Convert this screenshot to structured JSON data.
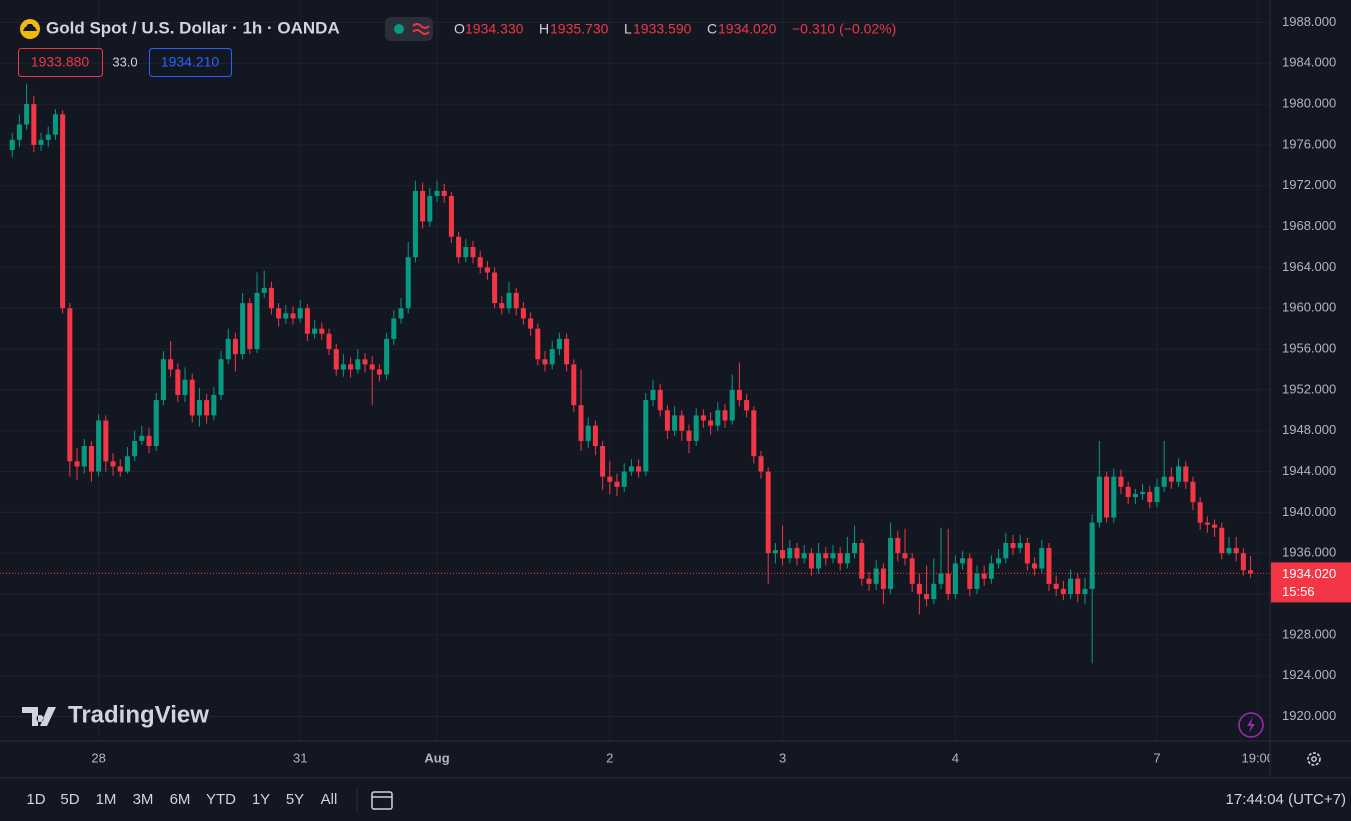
{
  "chart_data": {
    "type": "candlestick",
    "title": "Gold Spot / U.S. Dollar · 1h · OANDA",
    "ohlc": [
      {
        "key": "O",
        "value": "1934.330"
      },
      {
        "key": "H",
        "value": "1935.730"
      },
      {
        "key": "L",
        "value": "1933.590"
      },
      {
        "key": "C",
        "value": "1934.020"
      }
    ],
    "change": "−0.310 (−0.02%)",
    "bid": "1933.880",
    "spread": "33.0",
    "ask": "1934.210",
    "countdown": "15:56",
    "up_color": "#089981",
    "down_color": "#f23645",
    "grid": true,
    "xlim": [
      -1.7,
      174.7
    ],
    "xticks": [
      {
        "value": 12,
        "label": "28"
      },
      {
        "value": 40,
        "label": "31"
      },
      {
        "value": 59,
        "label": "Aug"
      },
      {
        "value": 83,
        "label": "2"
      },
      {
        "value": 107,
        "label": "3"
      },
      {
        "value": 131,
        "label": "4"
      },
      {
        "value": 159,
        "label": "7"
      },
      {
        "value": 173,
        "label": "19:00"
      }
    ],
    "ylim": [
      1917.6,
      1990.2
    ],
    "yticks": [
      {
        "value": 1920,
        "label": "1920.000"
      },
      {
        "value": 1924,
        "label": "1924.000"
      },
      {
        "value": 1928,
        "label": "1928.000"
      },
      {
        "value": 1932,
        "label": "1932.000"
      },
      {
        "value": 1936,
        "label": "1936.000"
      },
      {
        "value": 1940,
        "label": "1940.000"
      },
      {
        "value": 1944,
        "label": "1944.000"
      },
      {
        "value": 1948,
        "label": "1948.000"
      },
      {
        "value": 1952,
        "label": "1952.000"
      },
      {
        "value": 1956,
        "label": "1956.000"
      },
      {
        "value": 1960,
        "label": "1960.000"
      },
      {
        "value": 1964,
        "label": "1964.000"
      },
      {
        "value": 1968,
        "label": "1968.000"
      },
      {
        "value": 1972,
        "label": "1972.000"
      },
      {
        "value": 1976,
        "label": "1976.000"
      },
      {
        "value": 1980,
        "label": "1980.000"
      },
      {
        "value": 1984,
        "label": "1984.000"
      },
      {
        "value": 1988,
        "label": "1988.000"
      }
    ],
    "candles": [
      [
        1975.5,
        1977.2,
        1974.8,
        1976.5
      ],
      [
        1976.5,
        1979,
        1975.8,
        1978
      ],
      [
        1978,
        1982,
        1977.5,
        1980
      ],
      [
        1980,
        1980.8,
        1975.3,
        1976
      ],
      [
        1976,
        1977.2,
        1975.4,
        1976.5
      ],
      [
        1976.5,
        1977.8,
        1975.8,
        1977
      ],
      [
        1977,
        1979.5,
        1976.5,
        1979
      ],
      [
        1979,
        1979.4,
        1959.5,
        1960
      ],
      [
        1960,
        1960.5,
        1943.5,
        1945
      ],
      [
        1945,
        1946.3,
        1943.2,
        1944.5
      ],
      [
        1944.5,
        1947.2,
        1943.8,
        1946.5
      ],
      [
        1946.5,
        1947,
        1943,
        1944
      ],
      [
        1944,
        1949.6,
        1943.5,
        1949
      ],
      [
        1949,
        1949.5,
        1944,
        1945
      ],
      [
        1945,
        1945.8,
        1943.6,
        1944.5
      ],
      [
        1944.5,
        1945.2,
        1943.5,
        1944
      ],
      [
        1944,
        1946.4,
        1943.8,
        1945.5
      ],
      [
        1945.5,
        1948,
        1945,
        1947
      ],
      [
        1947,
        1948.5,
        1946.6,
        1947.5
      ],
      [
        1947.5,
        1948.3,
        1945.8,
        1946.5
      ],
      [
        1946.5,
        1951.7,
        1946,
        1951
      ],
      [
        1951,
        1955.8,
        1950.5,
        1955
      ],
      [
        1955,
        1956.8,
        1953.3,
        1954
      ],
      [
        1954,
        1954.6,
        1950.8,
        1951.5
      ],
      [
        1951.5,
        1954.2,
        1950.8,
        1953
      ],
      [
        1953,
        1953.6,
        1948.8,
        1949.5
      ],
      [
        1949.5,
        1952.2,
        1948.4,
        1951
      ],
      [
        1951,
        1951.6,
        1948.7,
        1949.5
      ],
      [
        1949.5,
        1952.3,
        1949,
        1951.5
      ],
      [
        1951.5,
        1955.8,
        1951,
        1955
      ],
      [
        1955,
        1958,
        1954.5,
        1957
      ],
      [
        1957,
        1957.6,
        1953.8,
        1955.5
      ],
      [
        1955.5,
        1961.5,
        1955,
        1960.5
      ],
      [
        1960.5,
        1961,
        1955.5,
        1956
      ],
      [
        1956,
        1963.5,
        1955.6,
        1961.5
      ],
      [
        1961.5,
        1963.7,
        1961,
        1962
      ],
      [
        1962,
        1962.6,
        1959.4,
        1960
      ],
      [
        1960,
        1960.5,
        1958.2,
        1959
      ],
      [
        1959,
        1960.3,
        1958.5,
        1959.5
      ],
      [
        1959.5,
        1960.2,
        1958.4,
        1959
      ],
      [
        1959,
        1960.8,
        1958.6,
        1960
      ],
      [
        1960,
        1960.4,
        1956.8,
        1957.5
      ],
      [
        1957.5,
        1958.8,
        1957,
        1958
      ],
      [
        1958,
        1958.6,
        1956.9,
        1957.5
      ],
      [
        1957.5,
        1958,
        1955.4,
        1956
      ],
      [
        1956,
        1956.5,
        1953.4,
        1954
      ],
      [
        1954,
        1955.5,
        1953.3,
        1954.5
      ],
      [
        1954.5,
        1955.2,
        1953.2,
        1954
      ],
      [
        1954,
        1956,
        1953.6,
        1955
      ],
      [
        1955,
        1955.6,
        1953.7,
        1954.5
      ],
      [
        1954.5,
        1955.3,
        1950.5,
        1954
      ],
      [
        1954,
        1954.5,
        1952.8,
        1953.5
      ],
      [
        1953.5,
        1957.6,
        1953,
        1957
      ],
      [
        1957,
        1959.8,
        1956.4,
        1959
      ],
      [
        1959,
        1961,
        1958.5,
        1960
      ],
      [
        1960,
        1966.5,
        1959.5,
        1965
      ],
      [
        1965,
        1972.5,
        1964.5,
        1971.5
      ],
      [
        1971.5,
        1972.3,
        1967.8,
        1968.5
      ],
      [
        1968.5,
        1971.8,
        1968,
        1971
      ],
      [
        1971,
        1972.5,
        1970.4,
        1971.5
      ],
      [
        1971.5,
        1972.2,
        1970.3,
        1971
      ],
      [
        1971,
        1971.4,
        1966.4,
        1967
      ],
      [
        1967,
        1967.5,
        1964.4,
        1965
      ],
      [
        1965,
        1966.8,
        1964.5,
        1966
      ],
      [
        1966,
        1966.6,
        1964.4,
        1965
      ],
      [
        1965,
        1965.6,
        1963.4,
        1964
      ],
      [
        1964,
        1964.6,
        1962.8,
        1963.5
      ],
      [
        1963.5,
        1964,
        1960,
        1960.5
      ],
      [
        1960.5,
        1961.2,
        1959.4,
        1960
      ],
      [
        1960,
        1962.6,
        1959.5,
        1961.5
      ],
      [
        1961.5,
        1962,
        1959.3,
        1960
      ],
      [
        1960,
        1960.6,
        1958.4,
        1959
      ],
      [
        1959,
        1959.6,
        1957.3,
        1958
      ],
      [
        1958,
        1958.5,
        1954.4,
        1955
      ],
      [
        1955,
        1955.8,
        1953.8,
        1954.5
      ],
      [
        1954.5,
        1956.8,
        1954,
        1956
      ],
      [
        1956,
        1957.6,
        1955.4,
        1957
      ],
      [
        1957,
        1957.5,
        1953.8,
        1954.5
      ],
      [
        1954.5,
        1955,
        1949.8,
        1950.5
      ],
      [
        1950.5,
        1954,
        1946,
        1947
      ],
      [
        1947,
        1949.3,
        1946.3,
        1948.5
      ],
      [
        1948.5,
        1949,
        1945.6,
        1946.5
      ],
      [
        1946.5,
        1947,
        1942.2,
        1943.5
      ],
      [
        1943.5,
        1945,
        1941.8,
        1943
      ],
      [
        1943,
        1943.8,
        1941.6,
        1942.5
      ],
      [
        1942.5,
        1944.8,
        1942,
        1944
      ],
      [
        1944,
        1945.2,
        1943.6,
        1944.5
      ],
      [
        1944.5,
        1945.2,
        1943.4,
        1944
      ],
      [
        1944,
        1951.7,
        1943.6,
        1951
      ],
      [
        1951,
        1953,
        1950.4,
        1952
      ],
      [
        1952,
        1952.6,
        1949.4,
        1950
      ],
      [
        1950,
        1950.5,
        1947.2,
        1948
      ],
      [
        1948,
        1950.4,
        1947.5,
        1949.5
      ],
      [
        1949.5,
        1950,
        1947,
        1948
      ],
      [
        1948,
        1948.6,
        1945.8,
        1947
      ],
      [
        1947,
        1950.2,
        1946.5,
        1949.5
      ],
      [
        1949.5,
        1950.1,
        1948.3,
        1949
      ],
      [
        1949,
        1949.8,
        1947.6,
        1948.5
      ],
      [
        1948.5,
        1950.8,
        1948,
        1950
      ],
      [
        1950,
        1950.6,
        1948.3,
        1949
      ],
      [
        1949,
        1953.5,
        1948.6,
        1952
      ],
      [
        1952,
        1954.7,
        1950.4,
        1951
      ],
      [
        1951,
        1951.6,
        1949.3,
        1950
      ],
      [
        1950,
        1950.4,
        1944.8,
        1945.5
      ],
      [
        1945.5,
        1946,
        1943.3,
        1944
      ],
      [
        1944,
        1944.4,
        1933,
        1936
      ],
      [
        1936,
        1937,
        1935,
        1936.3
      ],
      [
        1936.3,
        1938.7,
        1934.8,
        1935.5
      ],
      [
        1935.5,
        1937.3,
        1935,
        1936.5
      ],
      [
        1936.5,
        1937,
        1934.8,
        1935.5
      ],
      [
        1935.5,
        1936.8,
        1935,
        1936
      ],
      [
        1936,
        1936.5,
        1933.8,
        1934.5
      ],
      [
        1934.5,
        1937,
        1934,
        1936
      ],
      [
        1936,
        1936.6,
        1934.8,
        1935.5
      ],
      [
        1935.5,
        1936.8,
        1935,
        1936
      ],
      [
        1936,
        1936.6,
        1934.3,
        1935
      ],
      [
        1935,
        1937.6,
        1934.5,
        1936
      ],
      [
        1936,
        1938.7,
        1935.5,
        1937
      ],
      [
        1937,
        1937.4,
        1932.8,
        1933.5
      ],
      [
        1933.5,
        1934.2,
        1932.3,
        1933
      ],
      [
        1933,
        1935.3,
        1932.4,
        1934.5
      ],
      [
        1934.5,
        1935,
        1931,
        1932.5
      ],
      [
        1932.5,
        1939,
        1932,
        1937.5
      ],
      [
        1937.5,
        1938.2,
        1935.2,
        1936
      ],
      [
        1936,
        1938.4,
        1934.8,
        1935.5
      ],
      [
        1935.5,
        1936,
        1932.2,
        1933
      ],
      [
        1933,
        1934,
        1930,
        1932
      ],
      [
        1932,
        1934.8,
        1930.8,
        1931.5
      ],
      [
        1931.5,
        1935.5,
        1931,
        1933
      ],
      [
        1933,
        1938.5,
        1932.5,
        1934
      ],
      [
        1934,
        1938.4,
        1931.4,
        1932
      ],
      [
        1932,
        1935.8,
        1931.5,
        1935
      ],
      [
        1935,
        1936.2,
        1934.4,
        1935.5
      ],
      [
        1935.5,
        1936,
        1931.8,
        1932.5
      ],
      [
        1932.5,
        1934.8,
        1932,
        1934
      ],
      [
        1934,
        1934.8,
        1932.8,
        1933.5
      ],
      [
        1933.5,
        1935.8,
        1933,
        1935
      ],
      [
        1935,
        1936.4,
        1934.5,
        1935.5
      ],
      [
        1935.5,
        1938,
        1935,
        1937
      ],
      [
        1937,
        1937.8,
        1935.8,
        1936.5
      ],
      [
        1936.5,
        1937.8,
        1936,
        1937
      ],
      [
        1937,
        1937.5,
        1934.3,
        1935
      ],
      [
        1935,
        1935.6,
        1933.8,
        1934.5
      ],
      [
        1934.5,
        1937.3,
        1934,
        1936.5
      ],
      [
        1936.5,
        1937,
        1932.3,
        1933
      ],
      [
        1933,
        1933.8,
        1931.8,
        1932.5
      ],
      [
        1932.5,
        1933.3,
        1931.4,
        1932
      ],
      [
        1932,
        1934.4,
        1931.5,
        1933.5
      ],
      [
        1933.5,
        1934,
        1931.2,
        1932
      ],
      [
        1932,
        1933.6,
        1931,
        1932.5
      ],
      [
        1932.5,
        1939.8,
        1925.2,
        1939
      ],
      [
        1939,
        1947,
        1938.5,
        1943.5
      ],
      [
        1943.5,
        1944,
        1939,
        1939.5
      ],
      [
        1939.5,
        1944.3,
        1939,
        1943.5
      ],
      [
        1943.5,
        1944.2,
        1941.8,
        1942.5
      ],
      [
        1942.5,
        1943,
        1940.8,
        1941.5
      ],
      [
        1941.5,
        1942.3,
        1940.8,
        1941.8
      ],
      [
        1941.8,
        1942.8,
        1941.2,
        1942
      ],
      [
        1942,
        1942.6,
        1940.4,
        1941
      ],
      [
        1941,
        1943.3,
        1940.5,
        1942.5
      ],
      [
        1942.5,
        1947,
        1942,
        1943.5
      ],
      [
        1943.5,
        1944.4,
        1942.3,
        1943
      ],
      [
        1943,
        1945.3,
        1942.5,
        1944.5
      ],
      [
        1944.5,
        1945,
        1942.3,
        1943
      ],
      [
        1943,
        1943.5,
        1940.2,
        1941
      ],
      [
        1941,
        1941.5,
        1938.3,
        1939
      ],
      [
        1939,
        1939.6,
        1938,
        1938.8
      ],
      [
        1938.8,
        1939.3,
        1937.6,
        1938.5
      ],
      [
        1938.5,
        1939,
        1935.4,
        1936
      ],
      [
        1936,
        1937.6,
        1935.8,
        1936.5
      ],
      [
        1936.5,
        1937.6,
        1935.2,
        1936
      ],
      [
        1936,
        1936.5,
        1933.8,
        1934.33
      ],
      [
        1934.33,
        1935.73,
        1933.59,
        1934.02
      ]
    ],
    "brand": "TradingView",
    "ranges": [
      "1D",
      "5D",
      "1M",
      "3M",
      "6M",
      "YTD",
      "1Y",
      "5Y",
      "All"
    ],
    "clock": "17:44:04 (UTC+7)"
  }
}
